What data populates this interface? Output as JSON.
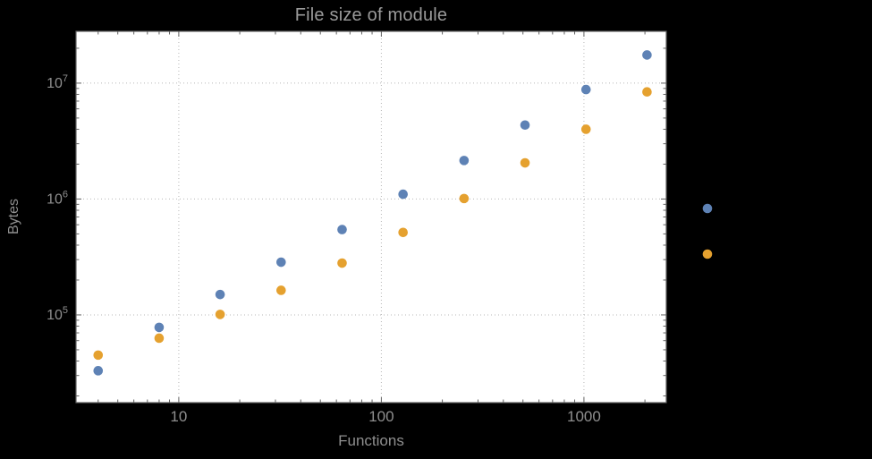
{
  "chart_data": {
    "type": "scatter",
    "title": "File size of module",
    "xlabel": "Functions",
    "ylabel": "Bytes",
    "x_scale": "log",
    "y_scale": "log",
    "x_range": [
      3.11,
      2550
    ],
    "y_range": [
      17500,
      28000000
    ],
    "grid": "dotted",
    "legend_position": "right-outside",
    "x_major_ticks": [
      {
        "value": 10,
        "label": "10"
      },
      {
        "value": 100,
        "label": "100"
      },
      {
        "value": 1000,
        "label": "1000"
      }
    ],
    "y_major_ticks": [
      {
        "value": 100000,
        "label_base": "10",
        "label_exp": "5"
      },
      {
        "value": 1000000,
        "label_base": "10",
        "label_exp": "6"
      },
      {
        "value": 10000000,
        "label_base": "10",
        "label_exp": "7"
      }
    ],
    "series": [
      {
        "name": "series-1-blue",
        "color": "#5E82B5",
        "points": [
          [
            4,
            33000
          ],
          [
            8,
            78000
          ],
          [
            16,
            150000
          ],
          [
            32,
            285000
          ],
          [
            64,
            545000
          ],
          [
            128,
            1100000
          ],
          [
            256,
            2150000
          ],
          [
            512,
            4350000
          ],
          [
            1024,
            8800000
          ],
          [
            2048,
            17500000
          ]
        ]
      },
      {
        "name": "series-2-orange",
        "color": "#E5A12F",
        "points": [
          [
            4,
            45000
          ],
          [
            8,
            63000
          ],
          [
            16,
            101000
          ],
          [
            32,
            163000
          ],
          [
            64,
            280000
          ],
          [
            128,
            515000
          ],
          [
            256,
            1010000
          ],
          [
            512,
            2050000
          ],
          [
            1024,
            4000000
          ],
          [
            2048,
            8400000
          ]
        ]
      }
    ],
    "legend_markers": [
      {
        "series": "series-1-blue",
        "color": "#5E82B5"
      },
      {
        "series": "series-2-orange",
        "color": "#E5A12F"
      }
    ],
    "colors": {
      "page_bg": "#000000",
      "plot_bg": "#FFFFFF",
      "frame": "#616161",
      "grid": "#B8B8B8",
      "tick_text": "#8F8F8F",
      "title_text": "#9A9A9A"
    }
  }
}
